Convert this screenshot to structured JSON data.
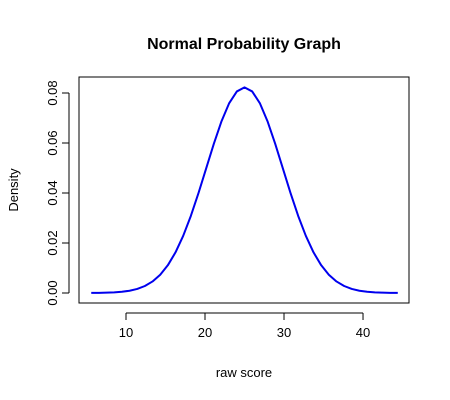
{
  "chart_data": {
    "type": "line",
    "title": "Normal Probability Graph",
    "x_label": "raw score",
    "y_label": "Density",
    "x": [
      5.6,
      6.57,
      7.54,
      8.51,
      9.48,
      10.45,
      11.42,
      12.39,
      13.36,
      14.33,
      15.3,
      16.27,
      17.24,
      18.21,
      19.18,
      20.15,
      21.12,
      22.09,
      23.06,
      24.03,
      25,
      25.97,
      26.94,
      27.91,
      28.88,
      29.85,
      30.82,
      31.79,
      32.76,
      33.73,
      34.7,
      35.67,
      36.64,
      37.61,
      38.58,
      39.55,
      40.52,
      41.49,
      42.46,
      43.43,
      44.4
    ],
    "series": [
      {
        "color": "#0000ee",
        "values": [
          3e-05,
          6e-05,
          0.00013,
          0.00025,
          0.00049,
          0.00091,
          0.00163,
          0.0028,
          0.00462,
          0.00731,
          0.01113,
          0.01628,
          0.02287,
          0.03087,
          0.04004,
          0.04989,
          0.05973,
          0.06871,
          0.07594,
          0.08063,
          0.08226,
          0.08063,
          0.07594,
          0.06871,
          0.05973,
          0.04989,
          0.04004,
          0.03087,
          0.02287,
          0.01628,
          0.01113,
          0.00731,
          0.00462,
          0.0028,
          0.00163,
          0.00091,
          0.00049,
          0.00025,
          0.00013,
          6e-05,
          3e-05
        ]
      }
    ],
    "xlim": [
      4.05,
      45.82
    ],
    "xticks": [
      10,
      20,
      30,
      40
    ],
    "ylim": [
      -0.004,
      0.0864
    ],
    "yticks": [
      {
        "value": 0,
        "label": "0.00"
      },
      {
        "value": 0.02,
        "label": "0.02"
      },
      {
        "value": 0.04,
        "label": "0.04"
      },
      {
        "value": 0.06,
        "label": "0.06"
      },
      {
        "value": 0.08,
        "label": "0.08"
      }
    ]
  }
}
